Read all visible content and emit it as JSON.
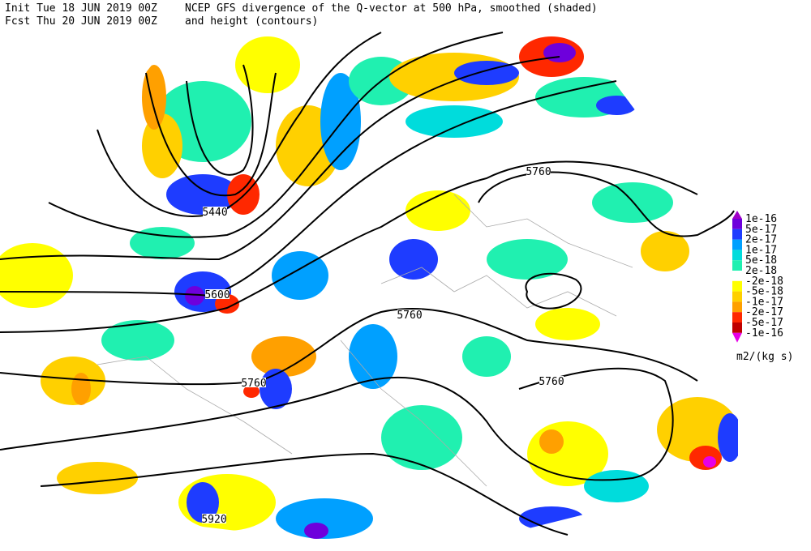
{
  "header": {
    "init": "Init  Tue 18 JUN 2019 00Z",
    "fcst": "Fcst Thu 20 JUN 2019 00Z",
    "title": "NCEP GFS divergence of the Q-vector at 500 hPa, smoothed (shaded)",
    "subtitle": "and height (contours)"
  },
  "contour_labels": [
    "5440",
    "5600",
    "5760",
    "5760",
    "5760",
    "5760",
    "5920"
  ],
  "colorbar": {
    "labels": [
      "1e-16",
      "5e-17",
      "2e-17",
      "1e-17",
      "5e-18",
      "2e-18",
      "-2e-18",
      "-5e-18",
      "-1e-17",
      "-2e-17",
      "-5e-17",
      "-1e-16"
    ],
    "colors": [
      "#a000c8",
      "#6e00dc",
      "#1e3cff",
      "#00a0ff",
      "#00dcdc",
      "#20f0b0",
      "#ffffff",
      "#ffff00",
      "#ffd000",
      "#ffa000",
      "#ff2800",
      "#c00000",
      "#e600e6"
    ],
    "unit": "m2/(kg s)"
  }
}
